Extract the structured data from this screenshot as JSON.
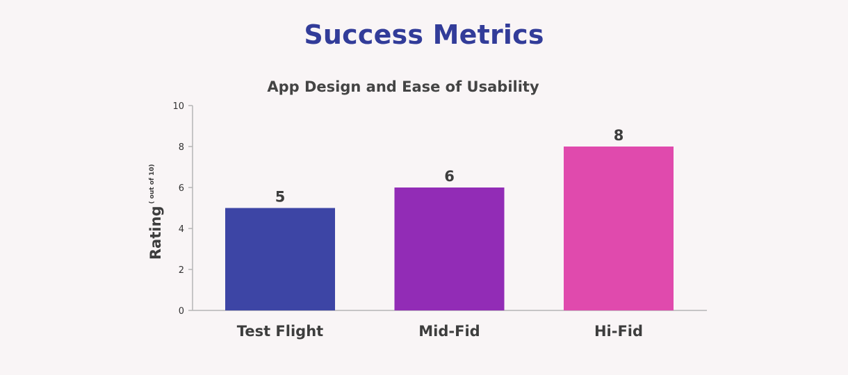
{
  "page": {
    "title": "Success Metrics"
  },
  "chart_data": {
    "type": "bar",
    "title": "App Design and Ease of Usability",
    "categories": [
      "Test Flight",
      "Mid-Fid",
      "Hi-Fid"
    ],
    "values": [
      5,
      6,
      8
    ],
    "data_labels": [
      "5",
      "6",
      "8"
    ],
    "bar_colors": [
      "#3d45a5",
      "#922cb6",
      "#e04aad"
    ],
    "ylabel": "Rating",
    "ylabel_sub": "( out of 10)",
    "xlabel": "",
    "ylim": [
      0,
      10
    ],
    "yticks": [
      0,
      2,
      4,
      6,
      8,
      10
    ],
    "grid": false,
    "legend": "none"
  },
  "colors": {
    "background": "#f9f5f6",
    "title": "#323c99",
    "text": "#3d3d3d",
    "axis": "#b5b5b5"
  }
}
